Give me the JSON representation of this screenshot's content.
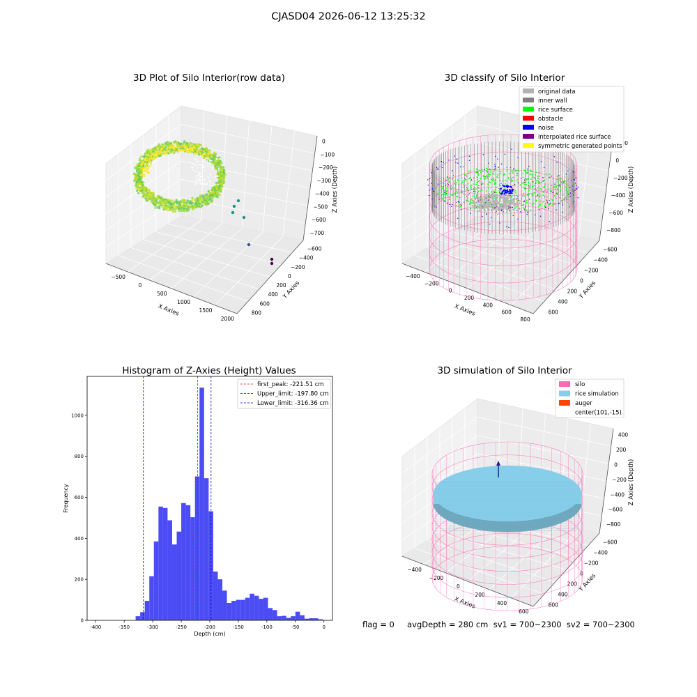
{
  "figure": {
    "suptitle": "CJASD04 2026-06-12 13:25:32",
    "status_text": "flag = 0     avgDepth = 280 cm  sv1 = 700~2300  sv2 = 700~2300"
  },
  "colors": {
    "hist_bar": "#4c4cf5",
    "first_peak": "#ff0000",
    "limits": "#0000cc",
    "original_data": "#b3b3b3",
    "inner_wall": "#808080",
    "rice_surface": "#00ff00",
    "obstacle": "#ff0000",
    "noise": "#0000ff",
    "interpolated": "#800080",
    "symmetric": "#ffff00",
    "silo": "#ff69b4",
    "rice_simulation": "#87ceeb",
    "auger": "#ff4500",
    "pane": "#f2f2f2",
    "grid": "#dddddd"
  },
  "chart_data": [
    {
      "type": "scatter",
      "projection": "3d",
      "title": "3D Plot of Silo Interior(row data)",
      "xlabel": "X Axies",
      "ylabel": "Y Axies",
      "zlabel": "Z Axies (Depth)",
      "xticks": [
        "−500",
        "0",
        "500",
        "1000",
        "1500",
        "2000"
      ],
      "yticks": [
        "−600",
        "−400",
        "−200",
        "0",
        "200",
        "400",
        "600",
        "800"
      ],
      "zticks": [
        "0",
        "−100",
        "−200",
        "−300",
        "−400",
        "−500",
        "−600",
        "−700"
      ],
      "colormap": "viridis",
      "outliers": [
        {
          "x": 900,
          "y": 650,
          "z": -400
        },
        {
          "x": 700,
          "y": 400,
          "z": -480
        },
        {
          "x": 720,
          "y": 350,
          "z": -520
        },
        {
          "x": 800,
          "y": 250,
          "z": -560
        },
        {
          "x": 900,
          "y": -100,
          "z": -700
        },
        {
          "x": 1300,
          "y": -400,
          "z": -720
        },
        {
          "x": 1300,
          "y": -450,
          "z": -730
        }
      ]
    },
    {
      "type": "scatter",
      "projection": "3d",
      "title": "3D classify of Silo Interior",
      "xlabel": "X Axies",
      "ylabel": "Y Axies",
      "zlabel": "Z Axies (Depth)",
      "xticks": [
        "−400",
        "−200",
        "0",
        "200",
        "400",
        "600",
        "800"
      ],
      "yticks": [
        "−600",
        "−400",
        "−200",
        "0",
        "200",
        "400",
        "600"
      ],
      "zticks": [
        "200",
        "0",
        "−200",
        "−400",
        "−600",
        "−800"
      ],
      "legend": [
        {
          "label": "original data",
          "color_key": "original_data"
        },
        {
          "label": "inner wall",
          "color_key": "inner_wall"
        },
        {
          "label": "rice surface",
          "color_key": "rice_surface"
        },
        {
          "label": "obstacle",
          "color_key": "obstacle"
        },
        {
          "label": "noise",
          "color_key": "noise"
        },
        {
          "label": "interpolated rice surface",
          "color_key": "interpolated"
        },
        {
          "label": "symmetric generated points",
          "color_key": "symmetric"
        }
      ],
      "legend_loc": "upper right"
    },
    {
      "type": "bar",
      "title": "Histogram of Z-Axies (Height) Values",
      "xlabel": "Depth (cm)",
      "ylabel": "Frequency",
      "xlim": [
        -415,
        15
      ],
      "ylim": [
        0,
        1190
      ],
      "xticks": [
        -400,
        -350,
        -300,
        -250,
        -200,
        -150,
        -100,
        -50,
        0
      ],
      "yticks": [
        0,
        200,
        400,
        600,
        800,
        1000
      ],
      "bins": [
        {
          "left": -330,
          "right": -322,
          "count": 20
        },
        {
          "left": -322,
          "right": -314,
          "count": 40
        },
        {
          "left": -314,
          "right": -306,
          "count": 95
        },
        {
          "left": -306,
          "right": -298,
          "count": 215
        },
        {
          "left": -298,
          "right": -290,
          "count": 385
        },
        {
          "left": -290,
          "right": -282,
          "count": 555
        },
        {
          "left": -282,
          "right": -274,
          "count": 548
        },
        {
          "left": -274,
          "right": -266,
          "count": 488
        },
        {
          "left": -266,
          "right": -258,
          "count": 370
        },
        {
          "left": -258,
          "right": -250,
          "count": 433
        },
        {
          "left": -250,
          "right": -242,
          "count": 572
        },
        {
          "left": -242,
          "right": -234,
          "count": 562
        },
        {
          "left": -234,
          "right": -226,
          "count": 503
        },
        {
          "left": -226,
          "right": -218,
          "count": 702
        },
        {
          "left": -218,
          "right": -210,
          "count": 1135
        },
        {
          "left": -210,
          "right": -202,
          "count": 693
        },
        {
          "left": -202,
          "right": -194,
          "count": 532
        },
        {
          "left": -194,
          "right": -186,
          "count": 238
        },
        {
          "left": -186,
          "right": -178,
          "count": 200
        },
        {
          "left": -178,
          "right": -170,
          "count": 145
        },
        {
          "left": -170,
          "right": -162,
          "count": 85
        },
        {
          "left": -162,
          "right": -154,
          "count": 95
        },
        {
          "left": -154,
          "right": -146,
          "count": 100
        },
        {
          "left": -146,
          "right": -138,
          "count": 100
        },
        {
          "left": -138,
          "right": -130,
          "count": 110
        },
        {
          "left": -130,
          "right": -122,
          "count": 130
        },
        {
          "left": -122,
          "right": -114,
          "count": 120
        },
        {
          "left": -114,
          "right": -106,
          "count": 105
        },
        {
          "left": -106,
          "right": -98,
          "count": 110
        },
        {
          "left": -98,
          "right": -90,
          "count": 60
        },
        {
          "left": -90,
          "right": -82,
          "count": 50
        },
        {
          "left": -82,
          "right": -74,
          "count": 20
        },
        {
          "left": -74,
          "right": -66,
          "count": 22
        },
        {
          "left": -66,
          "right": -58,
          "count": 12
        },
        {
          "left": -58,
          "right": -50,
          "count": 20
        },
        {
          "left": -50,
          "right": -42,
          "count": 42
        },
        {
          "left": -42,
          "right": -34,
          "count": 25
        },
        {
          "left": -34,
          "right": -26,
          "count": 8
        },
        {
          "left": -26,
          "right": -18,
          "count": 10
        },
        {
          "left": -18,
          "right": -10,
          "count": 10
        },
        {
          "left": -10,
          "right": -2,
          "count": 5
        }
      ],
      "lines": [
        {
          "label": "first_peak: -221.51 cm",
          "x": -221.51,
          "color_key": "first_peak"
        },
        {
          "label": "Upper_limit: -197.80 cm",
          "x": -197.8,
          "color_key": "limits"
        },
        {
          "label": "Lower_limit: -316.36 cm",
          "x": -316.36,
          "color_key": "limits"
        }
      ],
      "legend_loc": "upper right"
    },
    {
      "type": "scatter",
      "projection": "3d",
      "title": "3D simulation of Silo Interior",
      "xlabel": "X Axies",
      "ylabel": "Y Axies",
      "zlabel": "Z Axies (Depth)",
      "xticks": [
        "−400",
        "−200",
        "0",
        "200",
        "400",
        "600"
      ],
      "yticks": [
        "−600",
        "−400",
        "−200",
        "0",
        "200",
        "400",
        "600"
      ],
      "zticks": [
        "400",
        "200",
        "0",
        "−200",
        "−400",
        "−600",
        "−800"
      ],
      "legend": [
        {
          "label": "silo",
          "color_key": "silo"
        },
        {
          "label": "rice simulation",
          "color_key": "rice_simulation"
        },
        {
          "label": "auger",
          "color_key": "auger"
        },
        {
          "label": "center(101,-15)",
          "color_key": ""
        }
      ],
      "legend_loc": "upper right"
    }
  ]
}
